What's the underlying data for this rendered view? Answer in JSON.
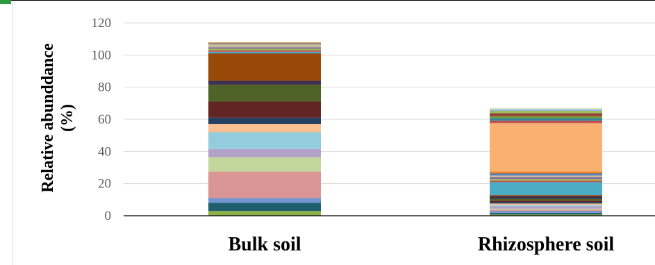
{
  "chart_data": {
    "type": "bar",
    "stacked": true,
    "title": "",
    "xlabel": "",
    "ylabel_lines": [
      "Relative abunddance",
      "(%)"
    ],
    "ylim": [
      0,
      120
    ],
    "yticks": [
      0,
      20,
      40,
      60,
      80,
      100,
      120
    ],
    "grid": true,
    "legend": "none",
    "categories": [
      "Bulk soil",
      "Rhizosphere soil"
    ],
    "series": [
      {
        "color": "#8cb04a",
        "values": [
          3.0,
          0.8
        ]
      },
      {
        "color": "#1f5f6e",
        "values": [
          5.0,
          1.0
        ]
      },
      {
        "color": "#7595d1",
        "values": [
          3.0,
          1.2
        ]
      },
      {
        "color": "#d99694",
        "values": [
          16.5,
          0.8
        ]
      },
      {
        "color": "#c3d69b",
        "values": [
          9.0,
          0.6
        ]
      },
      {
        "color": "#b3a2c7",
        "values": [
          5.0,
          1.4
        ]
      },
      {
        "color": "#93cddd",
        "values": [
          10.5,
          0.8
        ]
      },
      {
        "color": "#fac090",
        "values": [
          5.0,
          1.0
        ]
      },
      {
        "color": "#254061",
        "values": [
          4.0,
          1.0
        ]
      },
      {
        "color": "#632523",
        "values": [
          10.0,
          0.8
        ]
      },
      {
        "color": "#4f6228",
        "values": [
          10.5,
          1.2
        ]
      },
      {
        "color": "#3f3151",
        "values": [
          2.5,
          1.5
        ]
      },
      {
        "color": "#984807",
        "values": [
          17.0,
          0.8
        ]
      },
      {
        "color": "#4bacc6",
        "values": [
          1.0,
          8.0
        ]
      },
      {
        "color": "#c0504d",
        "values": [
          1.0,
          1.0
        ]
      },
      {
        "color": "#9bbb59",
        "values": [
          1.0,
          1.0
        ]
      },
      {
        "color": "#8064a2",
        "values": [
          0.8,
          1.2
        ]
      },
      {
        "color": "#c4bd97",
        "values": [
          2.0,
          1.0
        ]
      },
      {
        "color": "#4f81bd",
        "values": [
          0.5,
          1.2
        ]
      },
      {
        "color": "#e46c0a",
        "values": [
          0.5,
          0.8
        ]
      },
      {
        "color": "#f79646",
        "values": [
          0.0,
          0.6
        ]
      },
      {
        "color": "#fab070",
        "values": [
          0.0,
          30.0
        ]
      },
      {
        "color": "#c0504d",
        "values": [
          0.0,
          1.5
        ]
      },
      {
        "color": "#31859c",
        "values": [
          0.0,
          1.5
        ]
      },
      {
        "color": "#77933c",
        "values": [
          0.0,
          1.5
        ]
      },
      {
        "color": "#953735",
        "values": [
          0.0,
          1.5
        ]
      },
      {
        "color": "#9bbb59",
        "values": [
          0.0,
          1.5
        ]
      },
      {
        "color": "#8eb4e3",
        "values": [
          0.0,
          1.0
        ]
      },
      {
        "color": "#d7e4bd",
        "values": [
          0.0,
          0.8
        ]
      }
    ]
  }
}
